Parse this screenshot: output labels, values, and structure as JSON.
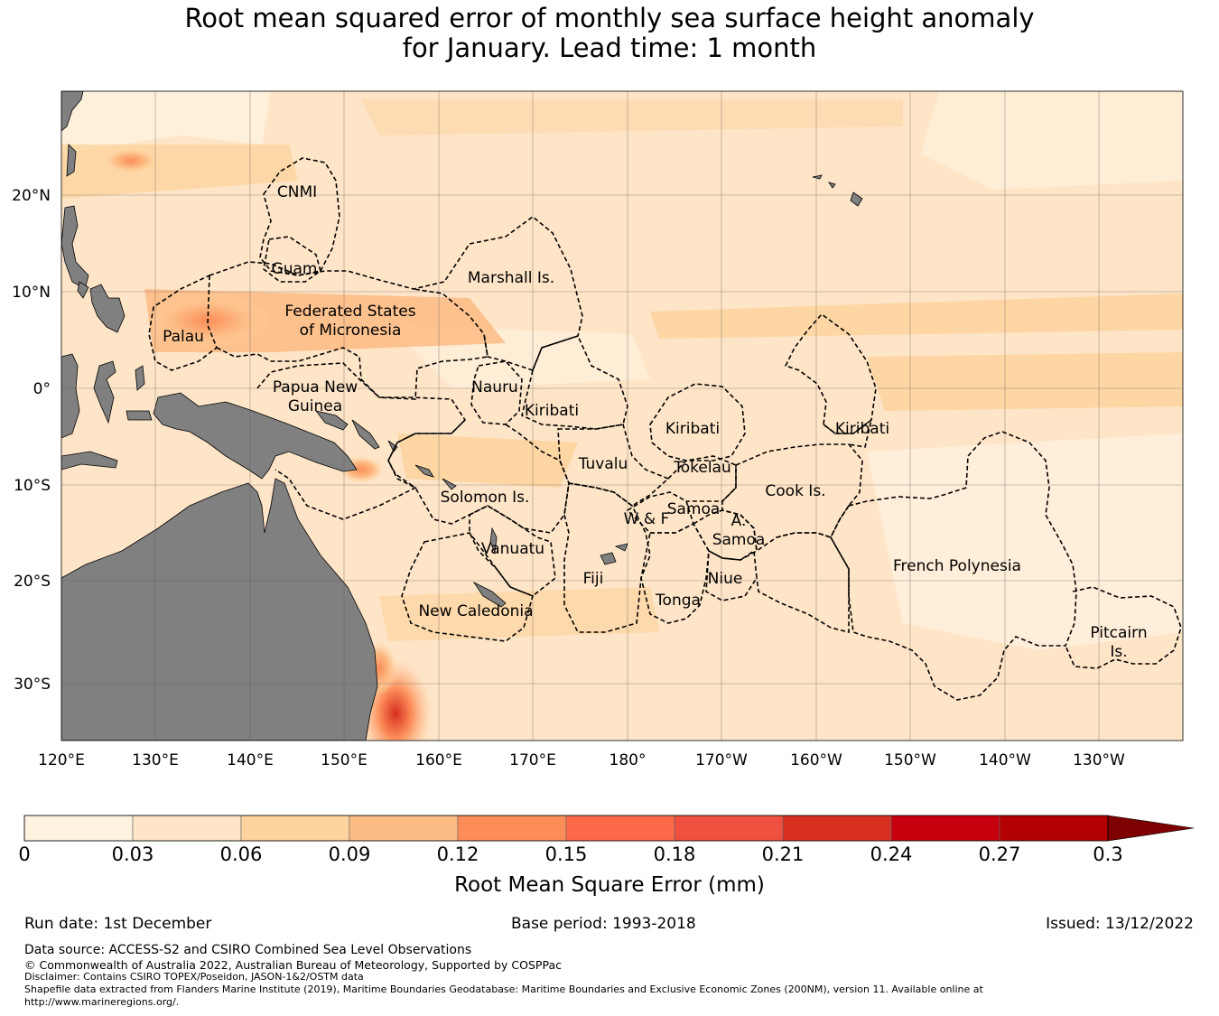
{
  "title": {
    "line1": "Root mean squared error of monthly sea surface height anomaly",
    "line2": "for January. Lead time: 1 month"
  },
  "axes": {
    "lon_ticks": [
      "120°E",
      "130°E",
      "140°E",
      "150°E",
      "160°E",
      "170°E",
      "180°",
      "170°W",
      "160°W",
      "150°W",
      "140°W",
      "130°W"
    ],
    "lat_ticks": [
      "20°N",
      "10°N",
      "0°",
      "10°S",
      "20°S",
      "30°S"
    ]
  },
  "regions": [
    {
      "name": "CNMI",
      "lines": [
        "CNMI"
      ]
    },
    {
      "name": "Guam",
      "lines": [
        "Guam"
      ]
    },
    {
      "name": "Marshall Is.",
      "lines": [
        "Marshall Is."
      ]
    },
    {
      "name": "Federated States of Micronesia",
      "lines": [
        "Federated States",
        "of Micronesia"
      ]
    },
    {
      "name": "Palau",
      "lines": [
        "Palau"
      ]
    },
    {
      "name": "Papua New Guinea",
      "lines": [
        "Papua New",
        "Guinea"
      ]
    },
    {
      "name": "Nauru",
      "lines": [
        "Nauru"
      ]
    },
    {
      "name": "Kiribati (Gilbert)",
      "lines": [
        "Kiribati"
      ]
    },
    {
      "name": "Kiribati (Phoenix)",
      "lines": [
        "Kiribati"
      ]
    },
    {
      "name": "Kiribati (Line)",
      "lines": [
        "Kiribati"
      ]
    },
    {
      "name": "Tuvalu",
      "lines": [
        "Tuvalu"
      ]
    },
    {
      "name": "Tokelau",
      "lines": [
        "Tokelau"
      ]
    },
    {
      "name": "Solomon Is.",
      "lines": [
        "Solomon Is."
      ]
    },
    {
      "name": "Cook Is.",
      "lines": [
        "Cook Is."
      ]
    },
    {
      "name": "Samoa",
      "lines": [
        "Samoa"
      ]
    },
    {
      "name": "W & F",
      "lines": [
        "W & F"
      ]
    },
    {
      "name": "A. Samoa",
      "lines": [
        "A.",
        "Samoa"
      ]
    },
    {
      "name": "Vanuatu",
      "lines": [
        "Vanuatu"
      ]
    },
    {
      "name": "Fiji",
      "lines": [
        "Fiji"
      ]
    },
    {
      "name": "Niue",
      "lines": [
        "Niue"
      ]
    },
    {
      "name": "French Polynesia",
      "lines": [
        "French Polynesia"
      ]
    },
    {
      "name": "Tonga",
      "lines": [
        "Tonga"
      ]
    },
    {
      "name": "New Caledonia",
      "lines": [
        "New Caledonia"
      ]
    },
    {
      "name": "Pitcairn Is.",
      "lines": [
        "Pitcairn",
        "Is."
      ]
    }
  ],
  "colorbar": {
    "title": "Root Mean Square Error (mm)",
    "ticks": [
      "0",
      "0.03",
      "0.06",
      "0.09",
      "0.12",
      "0.15",
      "0.18",
      "0.21",
      "0.24",
      "0.27",
      "0.3"
    ],
    "colors": [
      "#fff2e0",
      "#fee5c8",
      "#fdd49e",
      "#fdbb84",
      "#fc8d59",
      "#fd6a4a",
      "#ef5040",
      "#d7301f",
      "#c6000f",
      "#b30000"
    ],
    "extend_color": "#7f0000"
  },
  "colors": {
    "land": "#808080",
    "ocean_base": "#fee5c8",
    "boundary": "#000000"
  },
  "footer": {
    "run_date": "Run date: 1st December",
    "base_period": "Base period: 1993-2018",
    "issued": "Issued: 13/12/2022",
    "data_source": "Data source: ACCESS-S2 and CSIRO Combined Sea Level Observations",
    "copyright": "© Commonwealth of Australia 2022, Australian Bureau of Meteorology, Supported by COSPPac",
    "disclaimer": "Disclaimer: Contains CSIRO TOPEX/Poseidon, JASON-1&2/OSTM data",
    "shapefile_line1": "Shapefile data extracted from Flanders Marine Institute (2019), Maritime Boundaries Geodatabase: Maritime Boundaries and Exclusive Economic Zones (200NM), version 11. Available online at",
    "shapefile_line2": "http://www.marineregions.org/."
  }
}
